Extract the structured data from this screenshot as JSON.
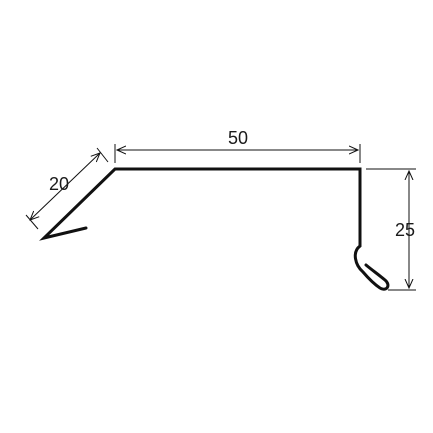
{
  "diagram": {
    "type": "sheet-metal-profile",
    "colors": {
      "profile": "#111111",
      "dimension": "#111111",
      "background": "#ffffff"
    },
    "dimensions": {
      "top_width": "50",
      "slope_length": "20",
      "side_height": "25"
    }
  }
}
